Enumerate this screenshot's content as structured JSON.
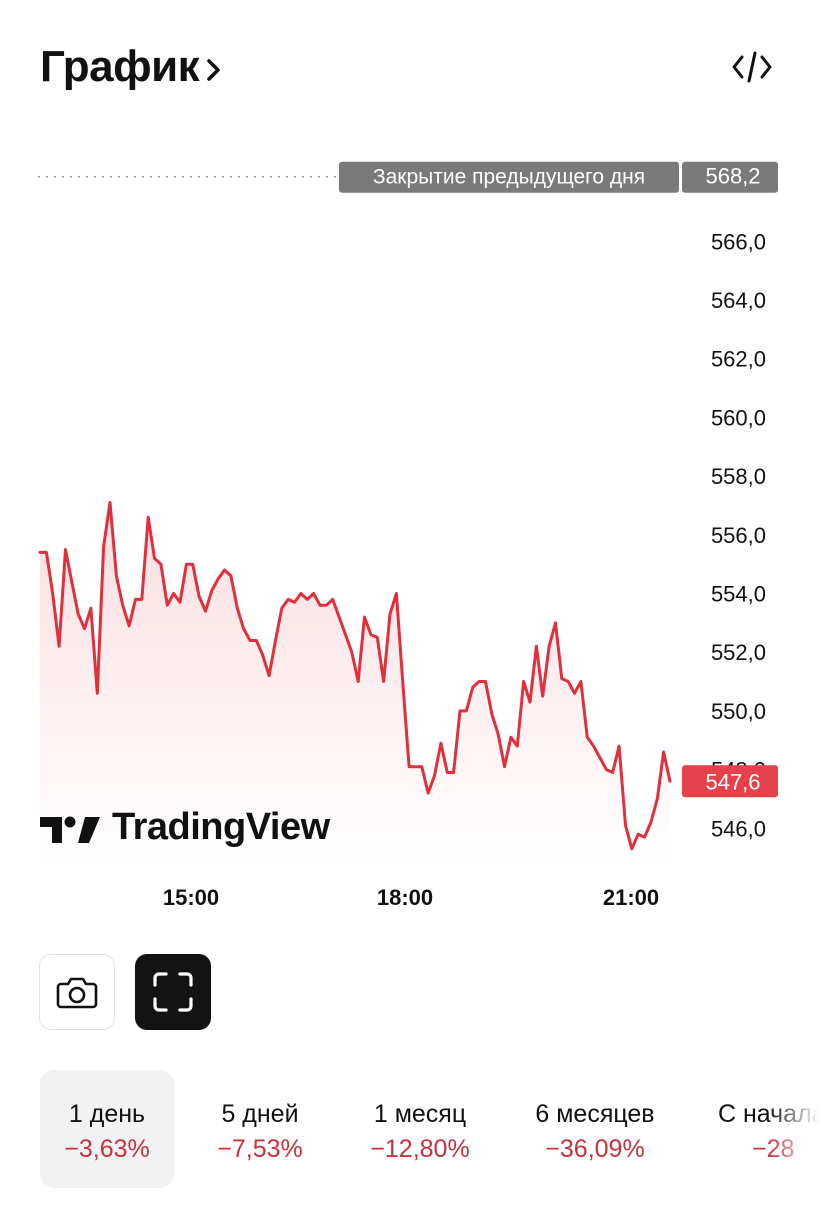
{
  "header": {
    "title": "График"
  },
  "colors": {
    "line": "#e0303c",
    "price_badge": "#e5414a",
    "prev_badge": "#7a7a7a",
    "negative": "#c8323c"
  },
  "icons": {
    "title_arrow": "chevron-right-icon",
    "embed": "code-icon",
    "camera": "camera-icon",
    "fullscreen": "fullscreen-icon"
  },
  "chart": {
    "prev_close_label": "Закрытие предыдущего дня",
    "prev_close_value": "568,2",
    "current_price": "547,6",
    "y_ticks": [
      "566,0",
      "564,0",
      "562,0",
      "560,0",
      "558,0",
      "556,0",
      "554,0",
      "552,0",
      "550,0",
      "548,0",
      "546,0"
    ],
    "x_ticks": [
      "15:00",
      "18:00",
      "21:00"
    ],
    "watermark": "TradingView"
  },
  "chart_data": {
    "type": "area",
    "title": "",
    "xlabel": "",
    "ylabel": "",
    "ylim": [
      544.6,
      568.8
    ],
    "x_ticks": [
      "15:00",
      "18:00",
      "21:00"
    ],
    "y_ticks": [
      566,
      564,
      562,
      560,
      558,
      556,
      554,
      552,
      550,
      548,
      546
    ],
    "reference_line": {
      "label": "Закрытие предыдущего дня",
      "value": 568.2
    },
    "last_value": 547.6,
    "series": [
      {
        "values": [
          555.4,
          555.4,
          554.0,
          552.2,
          555.5,
          554.4,
          553.3,
          552.8,
          553.5,
          550.6,
          555.6,
          557.1,
          554.6,
          553.6,
          552.9,
          553.8,
          553.8,
          556.6,
          555.2,
          555.0,
          553.6,
          554.0,
          553.7,
          555.0,
          555.0,
          553.9,
          553.4,
          554.1,
          554.5,
          554.8,
          554.6,
          553.5,
          552.8,
          552.4,
          552.4,
          551.9,
          551.2,
          552.4,
          553.5,
          553.8,
          553.7,
          554.0,
          553.8,
          554.0,
          553.6,
          553.6,
          553.8,
          553.2,
          552.6,
          552.0,
          551.0,
          553.2,
          552.6,
          552.5,
          551.0,
          553.3,
          554.0,
          551.0,
          548.1,
          548.1,
          548.1,
          547.2,
          547.8,
          548.9,
          547.9,
          547.9,
          550.0,
          550.0,
          550.8,
          551.0,
          551.0,
          549.9,
          549.2,
          548.1,
          549.1,
          548.8,
          551.0,
          550.3,
          552.2,
          550.5,
          552.2,
          553.0,
          551.1,
          551.0,
          550.6,
          551.0,
          549.1,
          548.8,
          548.4,
          548.0,
          547.9,
          548.8,
          546.1,
          545.3,
          545.8,
          545.7,
          546.2,
          547.0,
          548.6,
          547.6
        ]
      }
    ]
  },
  "buttons": {
    "camera": "screenshot",
    "fullscreen": "fullscreen"
  },
  "ranges": [
    {
      "label": "1 день",
      "change": "−3,63%",
      "active": true
    },
    {
      "label": "5 дней",
      "change": "−7,53%"
    },
    {
      "label": "1 месяц",
      "change": "−12,80%"
    },
    {
      "label": "6 месяцев",
      "change": "−36,09%"
    },
    {
      "label": "С начала года",
      "change": "−28"
    }
  ]
}
